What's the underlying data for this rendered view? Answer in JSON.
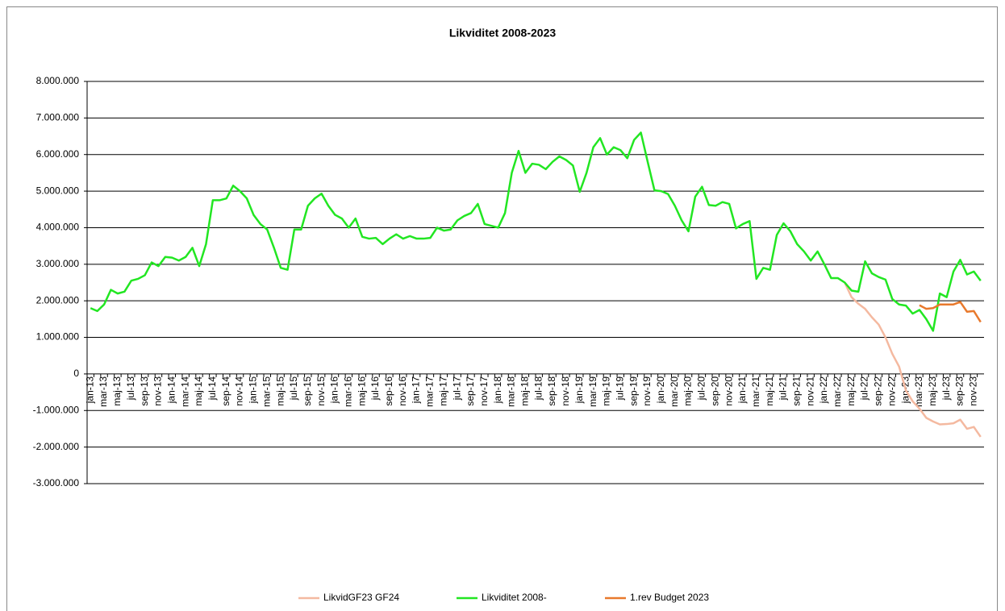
{
  "chart_data": {
    "type": "line",
    "title": "Likviditet 2008-2023",
    "categories": [
      "jan-13",
      null,
      "mar-13",
      null,
      "maj-13",
      null,
      "jul-13",
      null,
      "sep-13",
      null,
      "nov-13",
      null,
      "jan-14",
      null,
      "mar-14",
      null,
      "maj-14",
      null,
      "jul-14",
      null,
      "sep-14",
      null,
      "nov-14",
      null,
      "jan-15",
      null,
      "mar-15",
      null,
      "maj-15",
      null,
      "jul-15",
      null,
      "sep-15",
      null,
      "nov-15",
      null,
      "jan-16",
      null,
      "mar-16",
      null,
      "maj-16",
      null,
      "jul-16",
      null,
      "sep-16",
      null,
      "nov-16",
      null,
      "jan-17",
      null,
      "mar-17",
      null,
      "maj-17",
      null,
      "jul-17",
      null,
      "sep-17",
      null,
      "nov-17",
      null,
      "jan-18",
      null,
      "mar-18",
      null,
      "maj-18",
      null,
      "jul-18",
      null,
      "sep-18",
      null,
      "nov-18",
      null,
      "jan-19",
      null,
      "mar-19",
      null,
      "maj-19",
      null,
      "jul-19",
      null,
      "sep-19",
      null,
      "nov-19",
      null,
      "jan-20",
      null,
      "mar-20",
      null,
      "maj-20",
      null,
      "jul-20",
      null,
      "sep-20",
      null,
      "nov-20",
      null,
      "jan-21",
      null,
      "mar-21",
      null,
      "maj-21",
      null,
      "jul-21",
      null,
      "sep-21",
      null,
      "nov-21",
      null,
      "jan-22",
      null,
      "mar-22",
      null,
      "maj-22",
      null,
      "jul-22",
      null,
      "sep-22",
      null,
      "nov-22",
      null,
      "jan-23",
      null,
      "mar-23",
      null,
      "maj-23",
      null,
      "jul-23",
      null,
      "sep-23",
      null,
      "nov-23",
      null
    ],
    "series": [
      {
        "name": "LikvidGF23 GF24",
        "color": "#f4b9a0",
        "values": [
          null,
          null,
          null,
          null,
          null,
          null,
          null,
          null,
          null,
          null,
          null,
          null,
          null,
          null,
          null,
          null,
          null,
          null,
          null,
          null,
          null,
          null,
          null,
          null,
          null,
          null,
          null,
          null,
          null,
          null,
          null,
          null,
          null,
          null,
          null,
          null,
          null,
          null,
          null,
          null,
          null,
          null,
          null,
          null,
          null,
          null,
          null,
          null,
          null,
          null,
          null,
          null,
          null,
          null,
          null,
          null,
          null,
          null,
          null,
          null,
          null,
          null,
          null,
          null,
          null,
          null,
          null,
          null,
          null,
          null,
          null,
          null,
          null,
          null,
          null,
          null,
          null,
          null,
          null,
          null,
          null,
          null,
          null,
          null,
          null,
          null,
          null,
          null,
          null,
          null,
          null,
          null,
          null,
          null,
          null,
          null,
          null,
          null,
          null,
          null,
          null,
          null,
          null,
          null,
          null,
          null,
          null,
          null,
          null,
          null,
          null,
          2500000,
          2100000,
          1920000,
          1780000,
          1550000,
          1350000,
          1000000,
          550000,
          200000,
          -450000,
          -750000,
          -950000,
          -1200000,
          -1300000,
          -1380000,
          -1370000,
          -1350000,
          -1250000,
          -1500000,
          -1450000,
          -1720000
        ]
      },
      {
        "name": "Likviditet 2008-",
        "color": "#22e622",
        "values": [
          1800000,
          1720000,
          1900000,
          2300000,
          2200000,
          2250000,
          2550000,
          2600000,
          2700000,
          3050000,
          2950000,
          3200000,
          3180000,
          3100000,
          3200000,
          3450000,
          2950000,
          3550000,
          4750000,
          4750000,
          4800000,
          5150000,
          5000000,
          4800000,
          4350000,
          4100000,
          3950000,
          3450000,
          2900000,
          2850000,
          3950000,
          3950000,
          4600000,
          4800000,
          4930000,
          4600000,
          4350000,
          4250000,
          4000000,
          4250000,
          3750000,
          3700000,
          3720000,
          3550000,
          3700000,
          3820000,
          3700000,
          3770000,
          3700000,
          3700000,
          3720000,
          4000000,
          3920000,
          3950000,
          4200000,
          4320000,
          4400000,
          4650000,
          4100000,
          4050000,
          4000000,
          4400000,
          5500000,
          6100000,
          5500000,
          5750000,
          5720000,
          5600000,
          5800000,
          5950000,
          5850000,
          5700000,
          4980000,
          5500000,
          6200000,
          6450000,
          6000000,
          6200000,
          6120000,
          5900000,
          6400000,
          6600000,
          5800000,
          5020000,
          5000000,
          4920000,
          4600000,
          4200000,
          3900000,
          4850000,
          5120000,
          4620000,
          4600000,
          4700000,
          4650000,
          3980000,
          4100000,
          4180000,
          2600000,
          2900000,
          2850000,
          3800000,
          4120000,
          3900000,
          3550000,
          3350000,
          3100000,
          3350000,
          3000000,
          2620000,
          2620000,
          2500000,
          2280000,
          2250000,
          3080000,
          2750000,
          2650000,
          2580000,
          2050000,
          1900000,
          1870000,
          1650000,
          1750000,
          1500000,
          1180000,
          2200000,
          2100000,
          2800000,
          3120000,
          2720000,
          2800000,
          2550000
        ]
      },
      {
        "name": "1.rev Budget 2023",
        "color": "#e8792c",
        "values": [
          null,
          null,
          null,
          null,
          null,
          null,
          null,
          null,
          null,
          null,
          null,
          null,
          null,
          null,
          null,
          null,
          null,
          null,
          null,
          null,
          null,
          null,
          null,
          null,
          null,
          null,
          null,
          null,
          null,
          null,
          null,
          null,
          null,
          null,
          null,
          null,
          null,
          null,
          null,
          null,
          null,
          null,
          null,
          null,
          null,
          null,
          null,
          null,
          null,
          null,
          null,
          null,
          null,
          null,
          null,
          null,
          null,
          null,
          null,
          null,
          null,
          null,
          null,
          null,
          null,
          null,
          null,
          null,
          null,
          null,
          null,
          null,
          null,
          null,
          null,
          null,
          null,
          null,
          null,
          null,
          null,
          null,
          null,
          null,
          null,
          null,
          null,
          null,
          null,
          null,
          null,
          null,
          null,
          null,
          null,
          null,
          null,
          null,
          null,
          null,
          null,
          null,
          null,
          null,
          null,
          null,
          null,
          null,
          null,
          null,
          null,
          null,
          null,
          null,
          null,
          null,
          null,
          null,
          null,
          null,
          null,
          null,
          1880000,
          1780000,
          1800000,
          1900000,
          1900000,
          1900000,
          1970000,
          1700000,
          1720000,
          1420000
        ]
      }
    ],
    "ylim": [
      -3000000,
      8000000
    ],
    "yticks": [
      {
        "value": -3000000,
        "label": "-3.000.000"
      },
      {
        "value": -2000000,
        "label": "-2.000.000"
      },
      {
        "value": -1000000,
        "label": "-1.000.000"
      },
      0,
      {
        "value": 1000000,
        "label": "1.000.000"
      },
      {
        "value": 2000000,
        "label": "2.000.000"
      },
      {
        "value": 3000000,
        "label": "3.000.000"
      },
      {
        "value": 4000000,
        "label": "4.000.000"
      },
      {
        "value": 5000000,
        "label": "5.000.000"
      },
      {
        "value": 6000000,
        "label": "6.000.000"
      },
      {
        "value": 7000000,
        "label": "7.000.000"
      },
      {
        "value": 8000000,
        "label": "8.000.000"
      }
    ],
    "grid": true,
    "legend": "bottom"
  }
}
